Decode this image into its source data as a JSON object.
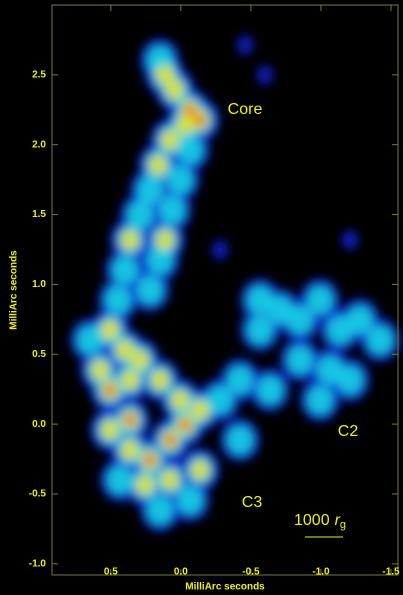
{
  "chart_data": {
    "type": "image",
    "xlabel": "MilliArc seconds",
    "ylabel": "MilliArc seconds",
    "xlim": [
      0.92,
      -1.55
    ],
    "ylim": [
      -1.08,
      3.0
    ],
    "xticks": [
      0.5,
      {
        "value": 0,
        "label": "0.0"
      },
      -0.5,
      {
        "value": -1,
        "label": "-1.0"
      },
      -1.5
    ],
    "yticks": [
      {
        "value": -1,
        "label": "-1.0"
      },
      -0.5,
      {
        "value": 0,
        "label": "0.0"
      },
      0.5,
      {
        "value": 1,
        "label": "1.0"
      },
      1.5,
      {
        "value": 2,
        "label": "2.0"
      },
      2.5
    ],
    "annotations": [
      "Core",
      "C2",
      "C3"
    ],
    "scale_bar": {
      "length": 1000,
      "unit": "r",
      "subscript": "g"
    },
    "color": "#f2f200"
  }
}
